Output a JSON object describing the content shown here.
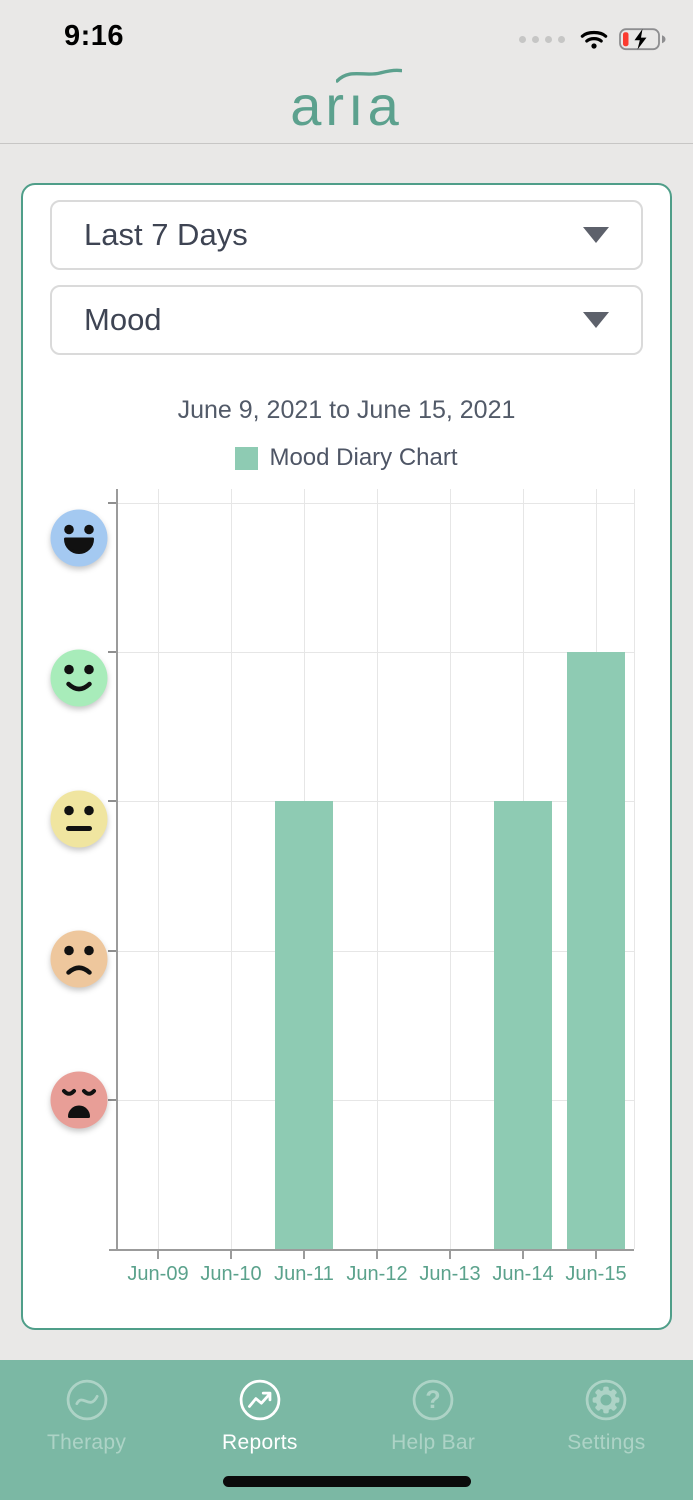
{
  "status_bar": {
    "time": "9:16",
    "icons": [
      "cellular-dots-icon",
      "wifi-icon",
      "battery-charging-icon"
    ]
  },
  "header": {
    "logo_text": "arıa"
  },
  "filters": {
    "range": {
      "value": "Last 7 Days"
    },
    "metric": {
      "value": "Mood"
    }
  },
  "chart_data": {
    "type": "bar",
    "title": "June 9, 2021 to June 15, 2021",
    "legend": {
      "label": "Mood Diary Chart",
      "position": "top"
    },
    "categories": [
      "Jun-09",
      "Jun-10",
      "Jun-11",
      "Jun-12",
      "Jun-13",
      "Jun-14",
      "Jun-15"
    ],
    "values": [
      0,
      0,
      3,
      0,
      0,
      3,
      4
    ],
    "ylim": [
      0,
      5
    ],
    "grid": true,
    "bar_color": "#8ecbb3",
    "y_axis": {
      "type": "mood-emoji",
      "levels": [
        {
          "value": 5,
          "mood": "very-happy",
          "icon": "very-happy-face-icon",
          "color": "#a4c9f1"
        },
        {
          "value": 4,
          "mood": "happy",
          "icon": "happy-face-icon",
          "color": "#a8ecba"
        },
        {
          "value": 3,
          "mood": "neutral",
          "icon": "neutral-face-icon",
          "color": "#f0e5a0"
        },
        {
          "value": 2,
          "mood": "sad",
          "icon": "sad-face-icon",
          "color": "#eec79d"
        },
        {
          "value": 1,
          "mood": "very-sad",
          "icon": "very-sad-face-icon",
          "color": "#e89e97"
        }
      ]
    }
  },
  "tab_bar": {
    "background": "#7bb8a4",
    "items": [
      {
        "label": "Therapy",
        "icon": "therapy-wave-icon",
        "active": false
      },
      {
        "label": "Reports",
        "icon": "reports-trend-icon",
        "active": true
      },
      {
        "label": "Help Bar",
        "icon": "help-question-icon",
        "active": false
      },
      {
        "label": "Settings",
        "icon": "settings-gear-icon",
        "active": false
      }
    ]
  },
  "colors": {
    "accent_teal": "#5ca18e",
    "card_border": "#4f9e89",
    "axis_label": "#5ba28c",
    "title_text": "#525a68",
    "dropdown_text": "#3e4453",
    "page_bg": "#e9e8e7",
    "home_indicator": "#0b0b0b"
  }
}
